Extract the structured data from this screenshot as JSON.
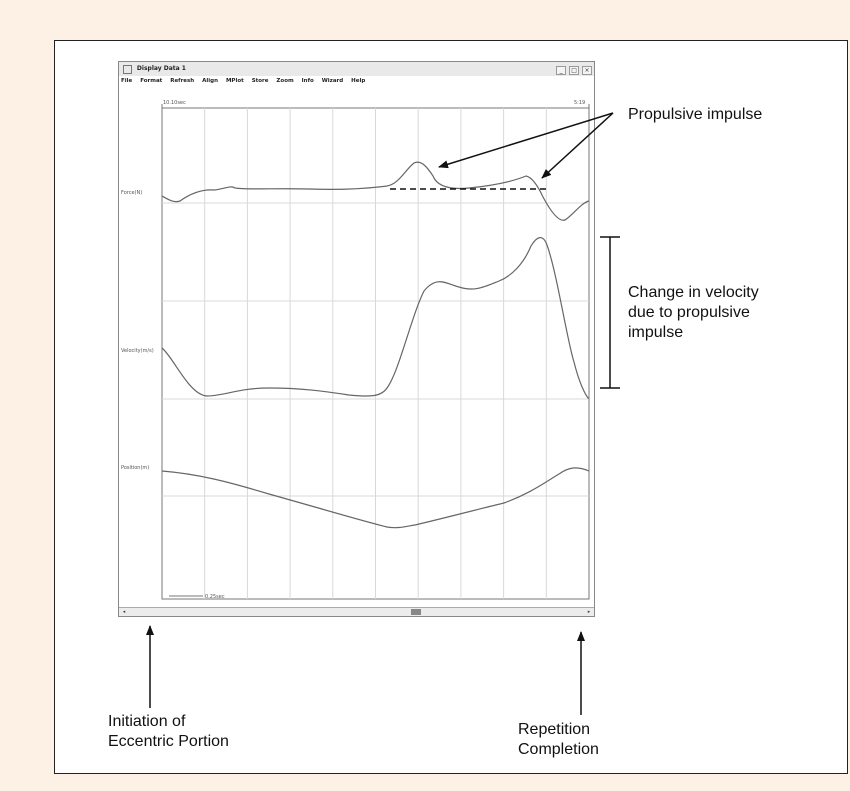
{
  "window": {
    "title": "Display Data 1",
    "menu": [
      "File",
      "Format",
      "Refresh",
      "Align",
      "MPlot",
      "Store",
      "Zoom",
      "Info",
      "Wizard",
      "Help"
    ],
    "buttons": [
      "_",
      "□",
      "×"
    ]
  },
  "chart_data": {
    "type": "line",
    "title": "",
    "xlabel": "",
    "time_start_label": "10.10sec",
    "time_end_label": "5:19",
    "scale_bar_label": "0.25sec",
    "grid": true,
    "series": [
      {
        "name": "Force(N)",
        "description_free": true
      },
      {
        "name": "Velocity(m/s)"
      },
      {
        "name": "Position(m)"
      }
    ],
    "note": ""
  },
  "annotations": {
    "propulsive_impulse": "Propulsive impulse",
    "velocity_change": [
      "Change in velocity",
      "due to propulsive",
      "impulse"
    ],
    "initiation": [
      "Initiation of",
      "Eccentric Portion"
    ],
    "completion": [
      "Repetition",
      "Completion"
    ]
  }
}
